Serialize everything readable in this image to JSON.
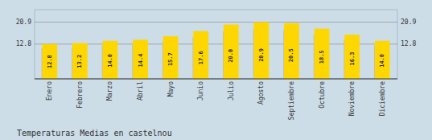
{
  "chart_data": {
    "type": "bar",
    "title": "Temperaturas Medias en castelnou",
    "categories": [
      "Enero",
      "Febrero",
      "Marzo",
      "Abril",
      "Mayo",
      "Junio",
      "Julio",
      "Agosto",
      "Septiembre",
      "Octubre",
      "Noviembre",
      "Diciembre"
    ],
    "series": [
      {
        "color": "#BEBEBE",
        "values": [
          11.264,
          11.616,
          12.32,
          12.672,
          13.816,
          15.488,
          17.6,
          18.392,
          18.04,
          16.28,
          14.344,
          12.32
        ]
      },
      {
        "color": "#FFD700",
        "values": [
          12.8,
          13.2,
          14.0,
          14.4,
          15.7,
          17.6,
          20.0,
          20.9,
          20.5,
          18.5,
          16.3,
          14.0
        ],
        "value_labels": [
          "12.8",
          "13.2",
          "14.0",
          "14.4",
          "15.7",
          "17.6",
          "20.0",
          "20.9",
          "20.5",
          "18.5",
          "16.3",
          "14.0"
        ],
        "data_labels": true
      }
    ],
    "ylim": [
      0,
      25.498
    ],
    "yticks": [
      12.8,
      20.9
    ],
    "y2lim": [
      0,
      25.498
    ],
    "y2ticks": [
      12.8,
      20.9
    ],
    "grid": true
  }
}
